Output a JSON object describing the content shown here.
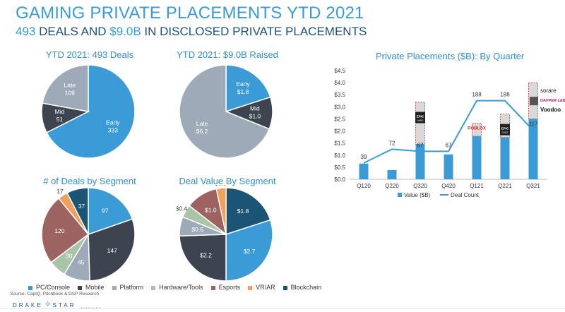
{
  "header": {
    "title": "GAMING PRIVATE PLACEMENTS YTD 2021",
    "subtitle_hl1": "493",
    "subtitle_mid": " DEALS AND ",
    "subtitle_hl2": "$9.0B",
    "subtitle_end": " IN DISCLOSED PRIVATE PLACEMENTS"
  },
  "legend": [
    {
      "label": "PC/Console",
      "color": "#3a9bd6"
    },
    {
      "label": "Mobile",
      "color": "#3b444f"
    },
    {
      "label": "Platform",
      "color": "#9eaab7"
    },
    {
      "label": "Hardware/Tools",
      "color": "#a9c4a6"
    },
    {
      "label": "Esports",
      "color": "#9c6360"
    },
    {
      "label": "VR/AR",
      "color": "#f0a058"
    },
    {
      "label": "Blockchain",
      "color": "#1c5476"
    }
  ],
  "footer": {
    "source": "Source: CapIQ, Pitchbook & DSP Research",
    "logo_left": "DRAKE",
    "logo_right": "STAR",
    "logo_sub": "PARTNERS"
  },
  "chart_data": [
    {
      "type": "pie",
      "title": "YTD 2021: 493 Deals",
      "slices": [
        {
          "label": "Early",
          "value": 333,
          "display": "333",
          "color": "#3a9bd6"
        },
        {
          "label": "Mid",
          "value": 51,
          "display": "51",
          "color": "#3b444f"
        },
        {
          "label": "Late",
          "value": 109,
          "display": "109",
          "color": "#9eaab7"
        }
      ]
    },
    {
      "type": "pie",
      "title": "YTD 2021: $9.0B Raised",
      "slices": [
        {
          "label": "Early",
          "value": 1.8,
          "display": "$1.8",
          "color": "#3a9bd6"
        },
        {
          "label": "Mid",
          "value": 1.0,
          "display": "$1.0",
          "color": "#3b444f"
        },
        {
          "label": "Late",
          "value": 6.2,
          "display": "$6.2",
          "color": "#9eaab7"
        }
      ]
    },
    {
      "type": "pie",
      "title": "# of Deals by Segment",
      "slices": [
        {
          "label": "PC/Console",
          "value": 97,
          "display": "97",
          "color": "#3a9bd6"
        },
        {
          "label": "Mobile",
          "value": 147,
          "display": "147",
          "color": "#3b444f"
        },
        {
          "label": "Platform",
          "value": 45,
          "display": "45",
          "color": "#9eaab7"
        },
        {
          "label": "Hardware/Tools",
          "value": 30,
          "display": "30",
          "color": "#a9c4a6"
        },
        {
          "label": "Esports",
          "value": 120,
          "display": "120",
          "color": "#9c6360"
        },
        {
          "label": "VR/AR",
          "value": 17,
          "display": "17",
          "color": "#f0a058"
        },
        {
          "label": "Blockchain",
          "value": 37,
          "display": "37",
          "color": "#1c5476"
        }
      ]
    },
    {
      "type": "pie",
      "title": "Deal Value By Segment",
      "slices": [
        {
          "label": "Blockchain",
          "value": 1.8,
          "display": "$1.8",
          "color": "#1c5476"
        },
        {
          "label": "PC/Console",
          "value": 2.7,
          "display": "$2.7",
          "color": "#3a9bd6"
        },
        {
          "label": "Mobile",
          "value": 2.2,
          "display": "$2.2",
          "color": "#3b444f"
        },
        {
          "label": "Platform",
          "value": 0.6,
          "display": "$0.6",
          "color": "#9eaab7"
        },
        {
          "label": "Hardware/Tools",
          "value": 0.4,
          "display": "$0.4",
          "color": "#a9c4a6"
        },
        {
          "label": "Esports",
          "value": 1.0,
          "display": "$1.0",
          "color": "#9c6360"
        },
        {
          "label": "VR/AR",
          "value": 0.3,
          "display": "$0.3",
          "color": "#f0a058"
        }
      ]
    },
    {
      "type": "bar",
      "title": "Private Placements ($B): By Quarter",
      "categories": [
        "Q120",
        "Q220",
        "Q320",
        "Q420",
        "Q121",
        "Q221",
        "Q321"
      ],
      "ylim": [
        0,
        4.5
      ],
      "yticks": [
        "$0.0",
        "$0.5",
        "$1.0",
        "$1.5",
        "$2.0",
        "$2.5",
        "$3.0",
        "$3.5",
        "$4.0",
        "$4.5"
      ],
      "series": [
        {
          "name": "Value ($B)",
          "values": [
            0.65,
            0.38,
            1.45,
            1.03,
            1.78,
            1.73,
            2.5
          ],
          "color": "#3a9bd6"
        },
        {
          "name": "Deal Count",
          "values": [
            39,
            72,
            67,
            67,
            188,
            188,
            117
          ],
          "color": "#3a9bd6"
        }
      ],
      "callouts": [
        {
          "category": "Q320",
          "top": 3.2,
          "label": "EPIC GAMES"
        },
        {
          "category": "Q121",
          "top": 2.32,
          "label": "ROBLOX"
        },
        {
          "category": "Q221",
          "top": 2.7,
          "label": "EPIC GAMES"
        },
        {
          "category": "Q321",
          "top": 4.0,
          "labels": [
            "sorare",
            "DAPPER LABS",
            "Voodoo"
          ]
        }
      ]
    }
  ]
}
